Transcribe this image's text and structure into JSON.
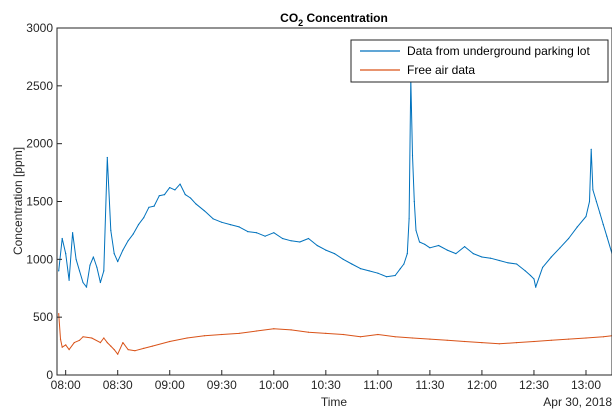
{
  "chart_data": {
    "type": "line",
    "title_main": "CO",
    "title_sub": "2",
    "title_rest": " Concentration",
    "xlabel": "Time",
    "ylabel": "Concentration [ppm]",
    "date_label": "Apr 30, 2018",
    "xlim": [
      "07:55",
      "13:15"
    ],
    "ylim": [
      0,
      3000
    ],
    "y_ticks": [
      0,
      500,
      1000,
      1500,
      2000,
      2500,
      3000
    ],
    "x_ticks": [
      "08:00",
      "08:30",
      "09:00",
      "09:30",
      "10:00",
      "10:30",
      "11:00",
      "11:30",
      "12:00",
      "12:30",
      "13:00"
    ],
    "grid": false,
    "legend_position": "top-right",
    "series": [
      {
        "name": "Data from underground parking lot",
        "color": "#0072BD",
        "x": [
          "07:56",
          "07:58",
          "08:00",
          "08:02",
          "08:04",
          "08:06",
          "08:08",
          "08:10",
          "08:12",
          "08:14",
          "08:16",
          "08:18",
          "08:20",
          "08:22",
          "08:24",
          "08:26",
          "08:28",
          "08:30",
          "08:33",
          "08:36",
          "08:39",
          "08:42",
          "08:45",
          "08:48",
          "08:51",
          "08:54",
          "08:57",
          "09:00",
          "09:03",
          "09:06",
          "09:09",
          "09:12",
          "09:15",
          "09:20",
          "09:25",
          "09:30",
          "09:35",
          "09:40",
          "09:45",
          "09:50",
          "09:55",
          "10:00",
          "10:05",
          "10:10",
          "10:15",
          "10:20",
          "10:25",
          "10:30",
          "10:35",
          "10:40",
          "10:45",
          "10:50",
          "10:55",
          "11:00",
          "11:05",
          "11:10",
          "11:13",
          "11:15",
          "11:17",
          "11:18",
          "11:19",
          "11:20",
          "11:21",
          "11:22",
          "11:24",
          "11:27",
          "11:30",
          "11:35",
          "11:40",
          "11:45",
          "11:50",
          "11:55",
          "12:00",
          "12:05",
          "12:10",
          "12:15",
          "12:20",
          "12:25",
          "12:28",
          "12:30",
          "12:31",
          "12:35",
          "12:40",
          "12:45",
          "12:50",
          "12:55",
          "13:00",
          "13:02",
          "13:03",
          "13:04",
          "13:06",
          "13:08",
          "13:10",
          "13:12",
          "13:15"
        ],
        "y": [
          900,
          1180,
          1050,
          820,
          1230,
          1000,
          900,
          800,
          760,
          950,
          1020,
          930,
          800,
          900,
          1880,
          1250,
          1050,
          980,
          1080,
          1160,
          1220,
          1300,
          1360,
          1450,
          1460,
          1550,
          1560,
          1620,
          1600,
          1650,
          1560,
          1530,
          1480,
          1420,
          1350,
          1320,
          1300,
          1280,
          1240,
          1230,
          1200,
          1230,
          1180,
          1160,
          1150,
          1180,
          1120,
          1080,
          1050,
          1000,
          960,
          920,
          900,
          880,
          850,
          860,
          920,
          960,
          1050,
          1350,
          2560,
          1900,
          1500,
          1250,
          1150,
          1130,
          1100,
          1120,
          1080,
          1050,
          1110,
          1050,
          1020,
          1010,
          990,
          970,
          960,
          900,
          860,
          830,
          760,
          930,
          1020,
          1100,
          1180,
          1280,
          1370,
          1500,
          1950,
          1600,
          1500,
          1400,
          1300,
          1200,
          1050
        ]
      },
      {
        "name": "Free air data",
        "color": "#D95319",
        "x": [
          "07:56",
          "07:57",
          "07:58",
          "08:00",
          "08:02",
          "08:05",
          "08:08",
          "08:10",
          "08:15",
          "08:20",
          "08:22",
          "08:24",
          "08:26",
          "08:28",
          "08:30",
          "08:33",
          "08:36",
          "08:40",
          "08:45",
          "08:50",
          "09:00",
          "09:10",
          "09:20",
          "09:30",
          "09:40",
          "09:50",
          "10:00",
          "10:10",
          "10:20",
          "10:30",
          "10:40",
          "10:50",
          "11:00",
          "11:10",
          "11:20",
          "11:30",
          "11:40",
          "11:50",
          "12:00",
          "12:10",
          "12:20",
          "12:30",
          "12:40",
          "12:50",
          "13:00",
          "13:10",
          "13:15"
        ],
        "y": [
          530,
          310,
          240,
          260,
          220,
          280,
          300,
          330,
          320,
          280,
          320,
          280,
          250,
          220,
          180,
          280,
          220,
          210,
          230,
          250,
          290,
          320,
          340,
          350,
          360,
          380,
          400,
          390,
          370,
          360,
          350,
          330,
          350,
          330,
          320,
          310,
          300,
          290,
          280,
          270,
          280,
          290,
          300,
          310,
          320,
          330,
          340
        ]
      }
    ]
  }
}
